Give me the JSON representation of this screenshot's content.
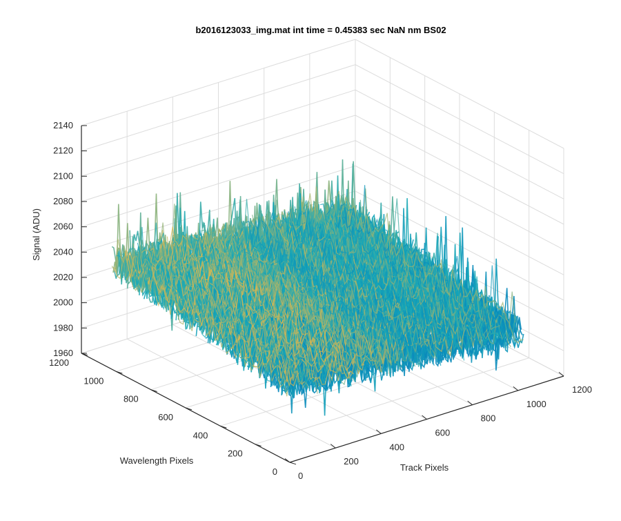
{
  "chart_data": {
    "type": "surface",
    "title": "b2016123033_img.mat int time = 0.45383 sec   NaN nm BS02",
    "xlabel": "Track Pixels",
    "ylabel": "Wavelength Pixels",
    "zlabel": "Signal (ADU)",
    "xlim": [
      0,
      1200
    ],
    "ylim": [
      0,
      1200
    ],
    "zlim": [
      1960,
      2140
    ],
    "x_ticks": [
      "0",
      "200",
      "400",
      "600",
      "800",
      "1000",
      "1200"
    ],
    "y_ticks": [
      "0",
      "200",
      "400",
      "600",
      "800",
      "1000",
      "1200"
    ],
    "z_ticks": [
      "1960",
      "1980",
      "2000",
      "2020",
      "2040",
      "2060",
      "2080",
      "2100",
      "2120",
      "2140"
    ],
    "grid": true,
    "colormap": "parula",
    "surface": {
      "x_extent": [
        0,
        1024
      ],
      "y_extent": [
        0,
        1024
      ],
      "baseline_high_corner": 2045,
      "baseline_low_corner": 2005,
      "noise_range": [
        1975,
        2120
      ]
    },
    "colors": {
      "low": "#0072BD",
      "mid": "#17A9B8",
      "high": "#E6B84A"
    }
  }
}
